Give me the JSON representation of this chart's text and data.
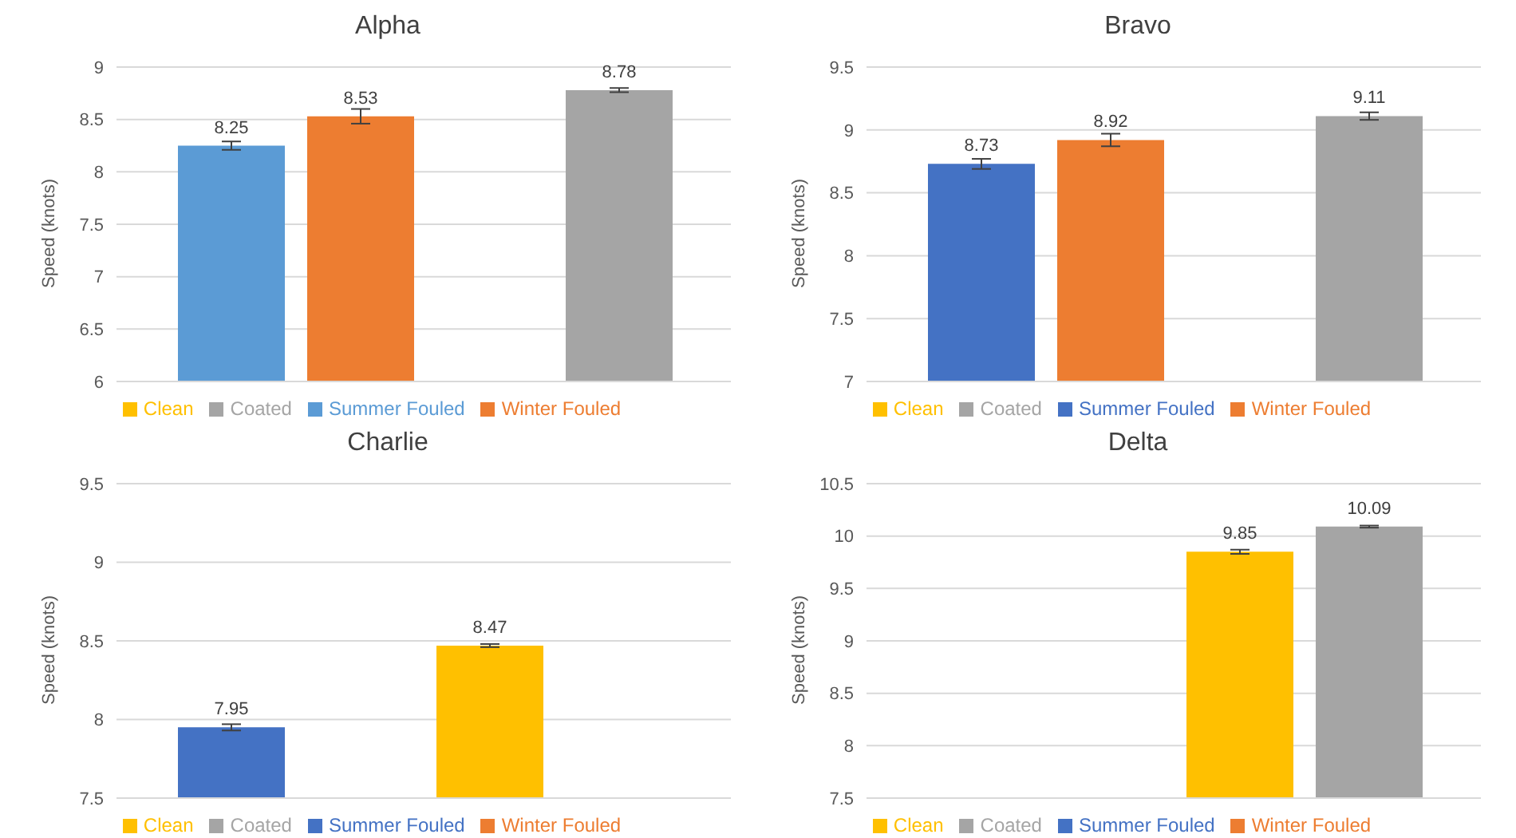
{
  "chart_data": [
    {
      "type": "bar",
      "title": "Alpha",
      "ylabel": "Speed (knots)",
      "categories": [
        null
      ],
      "ylim": [
        6,
        9
      ],
      "yticks": [
        6,
        6.5,
        7,
        7.5,
        8,
        8.5,
        9
      ],
      "grid": "y",
      "legend": "bottom",
      "data_labels": true,
      "series": [
        {
          "name": "Summer Fouled",
          "color": "#5b9bd5",
          "values": [
            8.25
          ],
          "errors": [
            0.04
          ]
        },
        {
          "name": "Winter Fouled",
          "color": "#ed7d31",
          "values": [
            8.53
          ],
          "errors": [
            0.07
          ]
        },
        {
          "name": "Clean",
          "color": "#ffc000",
          "values": [
            null
          ]
        },
        {
          "name": "Coated",
          "color": "#a5a5a5",
          "values": [
            8.78
          ],
          "errors": [
            0.02
          ]
        }
      ]
    },
    {
      "type": "bar",
      "title": "Bravo",
      "ylabel": "Speed (knots)",
      "categories": [
        null
      ],
      "ylim": [
        7,
        9.5
      ],
      "yticks": [
        7,
        7.5,
        8,
        8.5,
        9,
        9.5
      ],
      "grid": "y",
      "legend": "bottom",
      "data_labels": true,
      "series": [
        {
          "name": "Summer Fouled",
          "color": "#4472c4",
          "values": [
            8.73
          ],
          "errors": [
            0.04
          ]
        },
        {
          "name": "Winter Fouled",
          "color": "#ed7d31",
          "values": [
            8.92
          ],
          "errors": [
            0.05
          ]
        },
        {
          "name": "Clean",
          "color": "#ffc000",
          "values": [
            null
          ]
        },
        {
          "name": "Coated",
          "color": "#a5a5a5",
          "values": [
            9.11
          ],
          "errors": [
            0.03
          ]
        }
      ]
    },
    {
      "type": "bar",
      "title": "Charlie",
      "ylabel": "Speed (knots)",
      "categories": [
        null
      ],
      "ylim": [
        7.5,
        9.5
      ],
      "yticks": [
        7.5,
        8,
        8.5,
        9,
        9.5
      ],
      "grid": "y",
      "legend": "bottom",
      "data_labels": true,
      "series": [
        {
          "name": "Summer Fouled",
          "color": "#4472c4",
          "values": [
            7.95
          ],
          "errors": [
            0.02
          ]
        },
        {
          "name": "Winter Fouled",
          "color": "#ed7d31",
          "values": [
            null
          ]
        },
        {
          "name": "Clean",
          "color": "#ffc000",
          "values": [
            8.47
          ],
          "errors": [
            0.01
          ]
        },
        {
          "name": "Coated",
          "color": "#a5a5a5",
          "values": [
            null
          ]
        }
      ]
    },
    {
      "type": "bar",
      "title": "Delta",
      "ylabel": "Speed (knots)",
      "categories": [
        null
      ],
      "ylim": [
        7.5,
        10.5
      ],
      "yticks": [
        7.5,
        8,
        8.5,
        9,
        9.5,
        10,
        10.5
      ],
      "grid": "y",
      "legend": "bottom",
      "data_labels": true,
      "series": [
        {
          "name": "Summer Fouled",
          "color": "#4472c4",
          "values": [
            null
          ]
        },
        {
          "name": "Winter Fouled",
          "color": "#ed7d31",
          "values": [
            null
          ]
        },
        {
          "name": "Clean",
          "color": "#ffc000",
          "values": [
            9.85
          ],
          "errors": [
            0.02
          ]
        },
        {
          "name": "Coated",
          "color": "#a5a5a5",
          "values": [
            10.09
          ],
          "errors": [
            0.01
          ]
        }
      ]
    }
  ]
}
